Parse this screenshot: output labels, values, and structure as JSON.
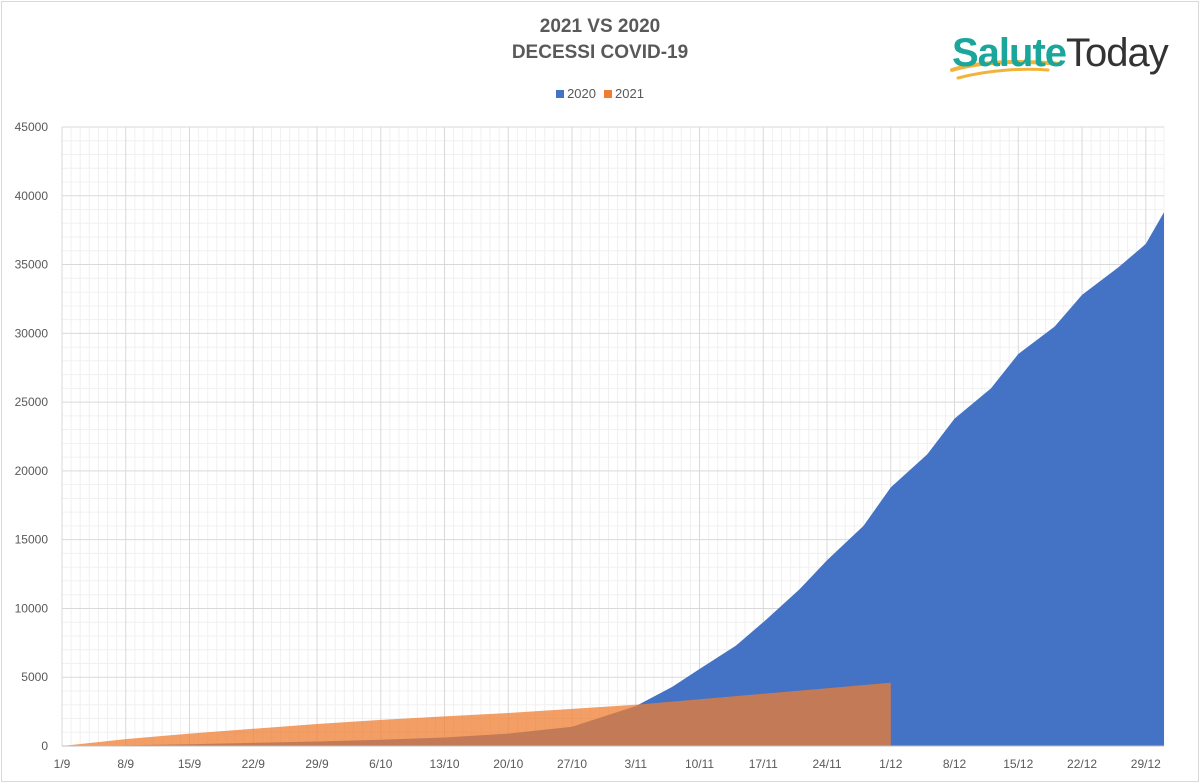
{
  "title_lines": [
    "2021 VS 2020",
    "DECESSI COVID-19"
  ],
  "logo": {
    "part_a": "Salute",
    "part_b": "Today"
  },
  "chart_data": {
    "type": "area",
    "title": "2021 VS 2020 DECESSI COVID-19",
    "xlabel": "",
    "ylabel": "",
    "ylim": [
      0,
      45000
    ],
    "yticks": [
      0,
      5000,
      10000,
      15000,
      20000,
      25000,
      30000,
      35000,
      40000,
      45000
    ],
    "x_tick_labels": [
      "1/9",
      "8/9",
      "15/9",
      "22/9",
      "29/9",
      "6/10",
      "13/10",
      "20/10",
      "27/10",
      "3/11",
      "10/11",
      "17/11",
      "24/11",
      "1/12",
      "8/12",
      "15/12",
      "22/12",
      "29/12"
    ],
    "legend_position": "top",
    "grid": true,
    "series": [
      {
        "name": "2020",
        "color": "#4472c4",
        "days_from_1_9": [
          0,
          7,
          14,
          21,
          28,
          35,
          42,
          49,
          56,
          63,
          67,
          70,
          74,
          77,
          81,
          84,
          88,
          91,
          95,
          98,
          102,
          105,
          109,
          112,
          116,
          119,
          121
        ],
        "values": [
          0,
          50,
          130,
          230,
          330,
          450,
          620,
          900,
          1400,
          2900,
          4300,
          5600,
          7300,
          9000,
          11400,
          13500,
          16000,
          18800,
          21200,
          23800,
          26000,
          28500,
          30500,
          32800,
          34800,
          36500,
          38800
        ]
      },
      {
        "name": "2021",
        "color": "#ed7d31",
        "days_from_1_9": [
          0,
          7,
          14,
          21,
          28,
          35,
          42,
          49,
          56,
          63,
          70,
          77,
          84,
          91
        ],
        "values": [
          0,
          500,
          900,
          1250,
          1600,
          1900,
          2150,
          2400,
          2700,
          3000,
          3400,
          3800,
          4200,
          4600
        ]
      }
    ]
  }
}
